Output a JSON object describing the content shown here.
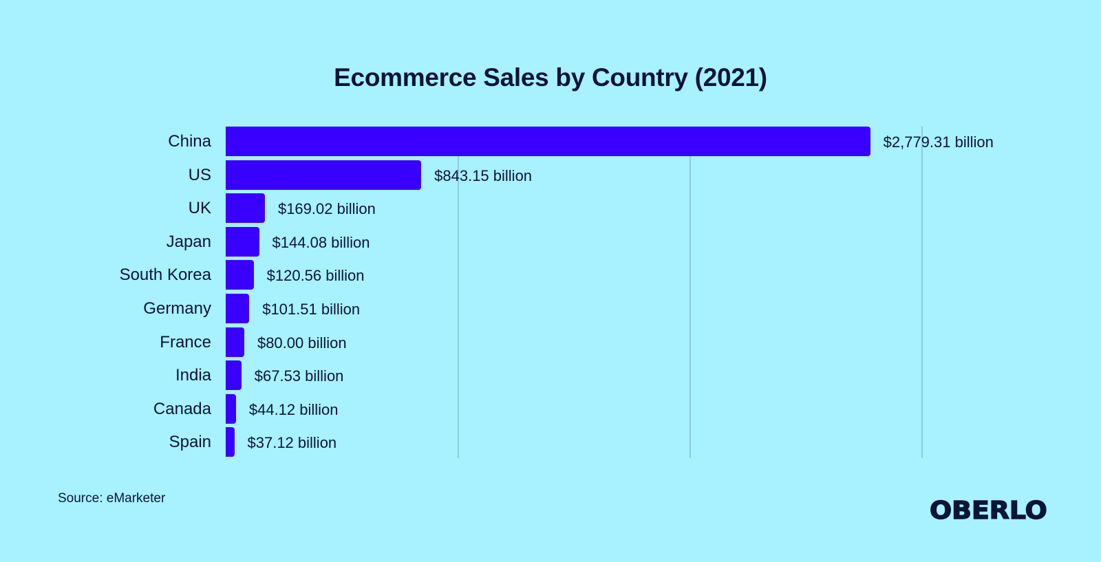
{
  "title": "Ecommerce Sales by Country (2021)",
  "source": "Source: eMarketer",
  "logo": "OBERLO",
  "colors": {
    "background": "#A8F1FF",
    "bar": "#3A00FF",
    "text": "#0B1537",
    "gridline": "#8CCDE0"
  },
  "chart_data": {
    "type": "bar",
    "orientation": "horizontal",
    "title": "Ecommerce Sales by Country (2021)",
    "xlabel": "",
    "ylabel": "",
    "unit": "billion USD",
    "categories": [
      "China",
      "US",
      "UK",
      "Japan",
      "South Korea",
      "Germany",
      "France",
      "India",
      "Canada",
      "Spain"
    ],
    "values": [
      2779.31,
      843.15,
      169.02,
      144.08,
      120.56,
      101.51,
      80.0,
      67.53,
      44.12,
      37.12
    ],
    "value_labels": [
      "$2,779.31 billion",
      "$843.15 billion",
      "$169.02 billion",
      "$144.08 billion",
      "$120.56 billion",
      "$101.51 billion",
      "$80.00 billion",
      "$67.53 billion",
      "$44.12 billion",
      "$37.12 billion"
    ],
    "xlim": [
      0,
      3000
    ],
    "gridlines_at": [
      1000,
      2000,
      3000
    ],
    "grid": true,
    "legend": null,
    "source": "eMarketer"
  }
}
